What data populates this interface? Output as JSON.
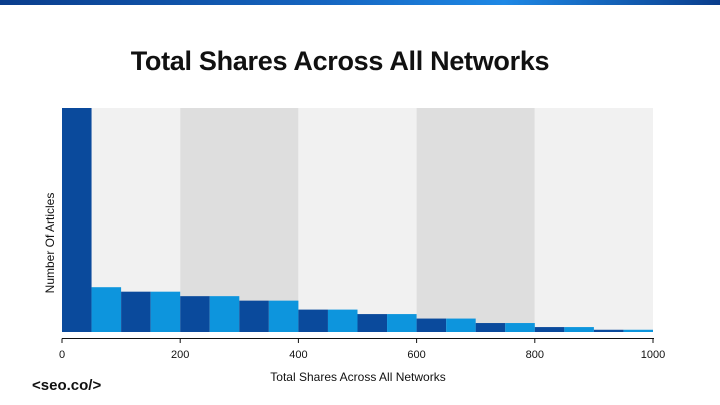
{
  "chart_data": {
    "type": "bar",
    "title": "Total Shares Across All Networks",
    "xlabel": "Total Shares Across All Networks",
    "ylabel": "Number Of Articles",
    "xlim": [
      0,
      1000
    ],
    "ylim": [
      0,
      100
    ],
    "bin_width": 50,
    "bins": [
      0,
      50,
      100,
      150,
      200,
      250,
      300,
      350,
      400,
      450,
      500,
      550,
      600,
      650,
      700,
      750,
      800,
      850,
      900,
      950
    ],
    "values": [
      100,
      20,
      18,
      18,
      16,
      16,
      14,
      14,
      10,
      10,
      8,
      8,
      6,
      6,
      4,
      4,
      2.2,
      2.2,
      1,
      1
    ],
    "xticks": [
      0,
      200,
      400,
      600,
      800,
      1000
    ],
    "band_colors": [
      "#f1f1f1",
      "#dedede"
    ],
    "bar_colors": [
      "#0a4a9c",
      "#0d95dd"
    ]
  },
  "brand": {
    "logo_text": "<seo.co/>"
  }
}
